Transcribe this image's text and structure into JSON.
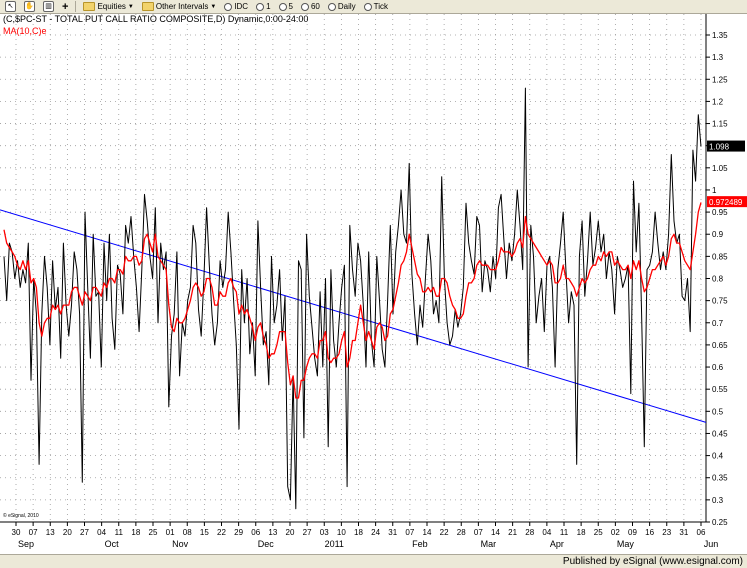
{
  "toolbar": {
    "items": [
      {
        "label": "Equities",
        "icon": "folder-icon",
        "dropdown": true
      },
      {
        "label": "Other Intervals",
        "icon": "folder-icon",
        "dropdown": true
      },
      {
        "label": "IDC",
        "icon": "clock-icon"
      },
      {
        "label": "1",
        "icon": "clock-icon"
      },
      {
        "label": "5",
        "icon": "clock-icon"
      },
      {
        "label": "60",
        "icon": "clock-icon"
      },
      {
        "label": "Daily",
        "icon": "clock-icon"
      },
      {
        "label": "Tick",
        "icon": "clock-icon"
      }
    ]
  },
  "legend": {
    "title": "(C,$PC-ST - TOTAL PUT CALL RATIO COMPOSITE,D) Dynamic,0:00-24:00",
    "ma": "MA(10,C)e"
  },
  "footer": {
    "text": "Published by eSignal  (www.esignal.com)"
  },
  "watermark": "© eSignal, 2010",
  "colors": {
    "price": "#000000",
    "ma": "#ff0000",
    "trend": "#0000ff",
    "grid": "#9a9a9a"
  },
  "chart_data": {
    "type": "line",
    "title": "(C,$PC-ST - TOTAL PUT CALL RATIO COMPOSITE,D) Dynamic,0:00-24:00",
    "ylim": [
      0.26,
      1.4
    ],
    "yticks": [
      "1.35",
      "1.3",
      "1.25",
      "1.2",
      "1.15",
      "1.1",
      "1.05",
      "1",
      "0.95",
      "0.9",
      "0.85",
      "0.8",
      "0.75",
      "0.7",
      "0.65",
      "0.6",
      "0.55",
      "0.5",
      "0.45",
      "0.4",
      "0.35",
      "0.3",
      "0.25"
    ],
    "grid": true,
    "day_ticks": [
      "30",
      "07",
      "13",
      "20",
      "27",
      "04",
      "11",
      "18",
      "25",
      "01",
      "08",
      "15",
      "22",
      "29",
      "06",
      "13",
      "20",
      "27",
      "03",
      "10",
      "18",
      "24",
      "31",
      "07",
      "14",
      "22",
      "28",
      "07",
      "14",
      "21",
      "28",
      "04",
      "11",
      "18",
      "25",
      "02",
      "09",
      "16",
      "23",
      "31",
      "06"
    ],
    "month_labels": [
      {
        "label": "Sep",
        "tick": 0
      },
      {
        "label": "Oct",
        "tick": 5
      },
      {
        "label": "Nov",
        "tick": 9
      },
      {
        "label": "Dec",
        "tick": 14
      },
      {
        "label": "2011",
        "tick": 18
      },
      {
        "label": "Feb",
        "tick": 23
      },
      {
        "label": "Mar",
        "tick": 27
      },
      {
        "label": "Apr",
        "tick": 31
      },
      {
        "label": "May",
        "tick": 35
      },
      {
        "label": "Jun",
        "tick": 40
      }
    ],
    "last_values": {
      "close": "1.098",
      "ma": "0.972489"
    },
    "trendline": {
      "start": 0.955,
      "end": 0.475
    },
    "series": [
      {
        "values": [
          0.85,
          0.75,
          0.88,
          0.86,
          0.8,
          0.84,
          0.78,
          0.82,
          0.79,
          0.88,
          0.57,
          0.8,
          0.72,
          0.38,
          0.72,
          0.85,
          0.78,
          0.65,
          0.84,
          0.73,
          0.78,
          0.62,
          0.88,
          0.74,
          0.67,
          0.74,
          0.86,
          0.82,
          0.72,
          0.34,
          0.95,
          0.78,
          0.62,
          0.9,
          0.76,
          0.77,
          0.6,
          0.88,
          0.75,
          0.9,
          0.71,
          0.64,
          0.83,
          0.81,
          0.72,
          0.92,
          0.88,
          0.94,
          0.85,
          0.78,
          0.68,
          0.82,
          0.99,
          0.93,
          0.85,
          0.8,
          0.96,
          0.7,
          0.88,
          0.82,
          0.86,
          0.51,
          0.67,
          0.72,
          0.86,
          0.58,
          0.7,
          0.67,
          0.75,
          0.78,
          0.92,
          0.88,
          0.73,
          0.67,
          0.8,
          0.96,
          0.83,
          0.72,
          0.65,
          0.7,
          0.84,
          0.78,
          0.82,
          0.95,
          0.86,
          0.75,
          0.65,
          0.46,
          0.82,
          0.7,
          0.8,
          0.63,
          0.7,
          0.58,
          0.93,
          0.78,
          0.65,
          0.68,
          0.56,
          0.85,
          0.7,
          0.74,
          0.82,
          0.66,
          0.76,
          0.33,
          0.3,
          0.58,
          0.28,
          0.84,
          0.82,
          0.44,
          0.9,
          0.76,
          0.69,
          0.62,
          0.58,
          0.77,
          0.6,
          0.8,
          0.42,
          0.82,
          0.66,
          0.6,
          0.7,
          0.78,
          0.83,
          0.33,
          0.92,
          0.82,
          0.76,
          0.88,
          0.84,
          0.74,
          0.6,
          0.86,
          0.66,
          0.6,
          0.85,
          0.75,
          0.64,
          0.6,
          0.75,
          0.92,
          0.72,
          0.86,
          0.92,
          1.0,
          0.9,
          0.88,
          1.06,
          0.81,
          0.72,
          0.65,
          0.74,
          0.69,
          0.8,
          0.9,
          0.84,
          0.72,
          0.75,
          0.7,
          1.03,
          0.8,
          0.7,
          0.65,
          0.67,
          0.73,
          0.69,
          0.72,
          0.78,
          0.97,
          0.88,
          0.84,
          0.81,
          0.94,
          0.92,
          0.77,
          0.84,
          0.82,
          0.77,
          0.85,
          0.8,
          0.96,
          0.99,
          0.89,
          0.8,
          0.88,
          0.84,
          0.9,
          1.0,
          0.92,
          0.82,
          1.23,
          0.6,
          0.92,
          0.85,
          0.7,
          0.76,
          0.8,
          0.68,
          0.83,
          0.85,
          0.78,
          0.6,
          0.82,
          0.88,
          0.95,
          0.82,
          0.7,
          0.77,
          0.74,
          0.38,
          0.85,
          0.93,
          0.76,
          0.84,
          0.95,
          0.83,
          0.87,
          0.93,
          0.86,
          0.9,
          0.8,
          0.86,
          0.82,
          0.72,
          0.85,
          0.82,
          0.78,
          0.8,
          0.83,
          0.54,
          1.02,
          0.86,
          0.97,
          0.72,
          0.42,
          0.82,
          0.83,
          0.86,
          0.95,
          0.88,
          0.82,
          0.86,
          0.82,
          0.9,
          1.08,
          0.93,
          0.88,
          0.9,
          0.76,
          0.75,
          0.8,
          0.68,
          1.09,
          1.02,
          1.17,
          1.098
        ]
      },
      {
        "values": [
          0.91,
          0.88,
          0.87,
          0.86,
          0.85,
          0.83,
          0.82,
          0.84,
          0.82,
          0.84,
          0.79,
          0.8,
          0.78,
          0.7,
          0.67,
          0.7,
          0.71,
          0.71,
          0.74,
          0.73,
          0.74,
          0.72,
          0.74,
          0.74,
          0.74,
          0.77,
          0.78,
          0.78,
          0.76,
          0.74,
          0.77,
          0.76,
          0.75,
          0.78,
          0.78,
          0.77,
          0.76,
          0.79,
          0.78,
          0.8,
          0.8,
          0.79,
          0.82,
          0.82,
          0.81,
          0.85,
          0.84,
          0.84,
          0.85,
          0.85,
          0.83,
          0.84,
          0.89,
          0.9,
          0.88,
          0.86,
          0.9,
          0.85,
          0.84,
          0.83,
          0.82,
          0.74,
          0.69,
          0.68,
          0.71,
          0.7,
          0.7,
          0.71,
          0.73,
          0.75,
          0.78,
          0.79,
          0.78,
          0.76,
          0.77,
          0.8,
          0.8,
          0.78,
          0.74,
          0.74,
          0.77,
          0.76,
          0.76,
          0.79,
          0.8,
          0.78,
          0.77,
          0.72,
          0.74,
          0.72,
          0.73,
          0.71,
          0.69,
          0.66,
          0.69,
          0.7,
          0.67,
          0.65,
          0.62,
          0.63,
          0.63,
          0.65,
          0.68,
          0.68,
          0.68,
          0.61,
          0.56,
          0.58,
          0.53,
          0.53,
          0.57,
          0.57,
          0.6,
          0.62,
          0.63,
          0.63,
          0.62,
          0.66,
          0.66,
          0.68,
          0.62,
          0.61,
          0.62,
          0.62,
          0.63,
          0.66,
          0.68,
          0.6,
          0.62,
          0.66,
          0.66,
          0.7,
          0.74,
          0.7,
          0.66,
          0.68,
          0.66,
          0.64,
          0.69,
          0.7,
          0.69,
          0.66,
          0.67,
          0.72,
          0.73,
          0.76,
          0.79,
          0.83,
          0.84,
          0.86,
          0.9,
          0.87,
          0.84,
          0.81,
          0.8,
          0.77,
          0.77,
          0.78,
          0.77,
          0.78,
          0.76,
          0.76,
          0.8,
          0.8,
          0.79,
          0.76,
          0.74,
          0.73,
          0.71,
          0.71,
          0.72,
          0.76,
          0.79,
          0.79,
          0.8,
          0.83,
          0.84,
          0.83,
          0.83,
          0.83,
          0.82,
          0.82,
          0.82,
          0.84,
          0.87,
          0.86,
          0.86,
          0.86,
          0.85,
          0.86,
          0.88,
          0.89,
          0.87,
          0.94,
          0.9,
          0.89,
          0.88,
          0.87,
          0.86,
          0.85,
          0.84,
          0.83,
          0.84,
          0.83,
          0.79,
          0.79,
          0.8,
          0.83,
          0.8,
          0.8,
          0.79,
          0.78,
          0.76,
          0.78,
          0.8,
          0.79,
          0.8,
          0.82,
          0.83,
          0.83,
          0.85,
          0.84,
          0.86,
          0.85,
          0.86,
          0.86,
          0.83,
          0.84,
          0.83,
          0.82,
          0.82,
          0.83,
          0.8,
          0.84,
          0.82,
          0.84,
          0.8,
          0.77,
          0.78,
          0.8,
          0.82,
          0.82,
          0.83,
          0.84,
          0.85,
          0.83,
          0.85,
          0.89,
          0.9,
          0.88,
          0.88,
          0.86,
          0.84,
          0.83,
          0.82,
          0.86,
          0.9,
          0.95,
          0.972
        ]
      }
    ]
  }
}
